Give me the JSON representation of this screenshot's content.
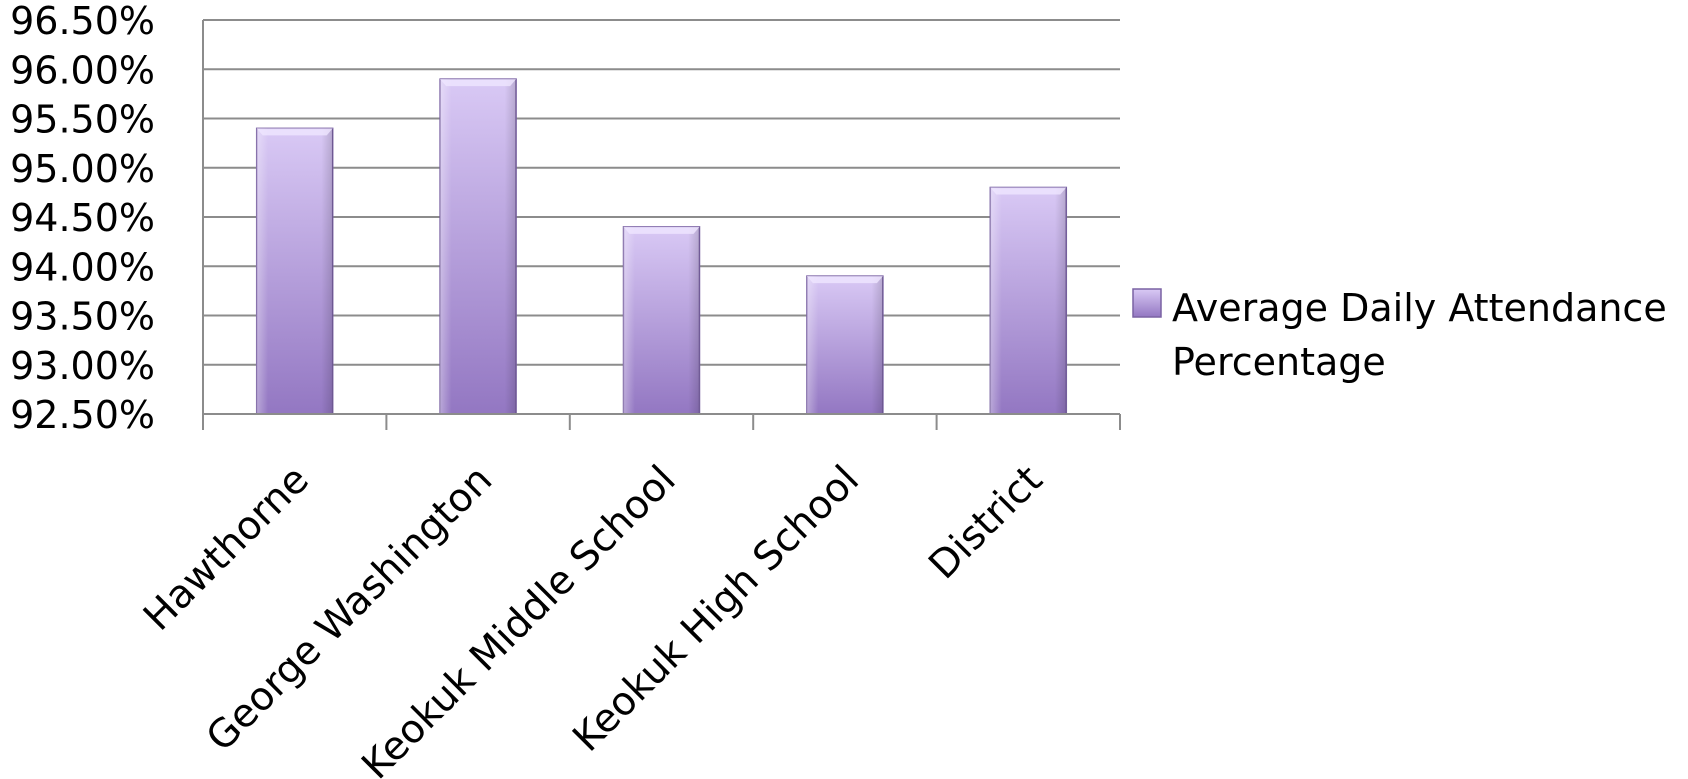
{
  "chart_data": {
    "type": "bar",
    "categories": [
      "Hawthorne",
      "George Washington",
      "Keokuk Middle School",
      "Keokuk High School",
      "District"
    ],
    "series": [
      {
        "name": "Average Daily Attendance Percentage",
        "values": [
          95.4,
          95.9,
          94.4,
          93.9,
          94.8
        ]
      }
    ],
    "ylim": [
      92.5,
      96.5
    ],
    "yticks": [
      "92.50%",
      "93.00%",
      "93.50%",
      "94.00%",
      "94.50%",
      "95.00%",
      "95.50%",
      "96.00%",
      "96.50%"
    ],
    "ytick_values": [
      92.5,
      93.0,
      93.5,
      94.0,
      94.5,
      95.0,
      95.5,
      96.0,
      96.5
    ],
    "grid": true,
    "legend_position": "right",
    "legend_lines": [
      "Average Daily Attendance",
      "Percentage"
    ],
    "bar_color": "#a98ad0"
  }
}
